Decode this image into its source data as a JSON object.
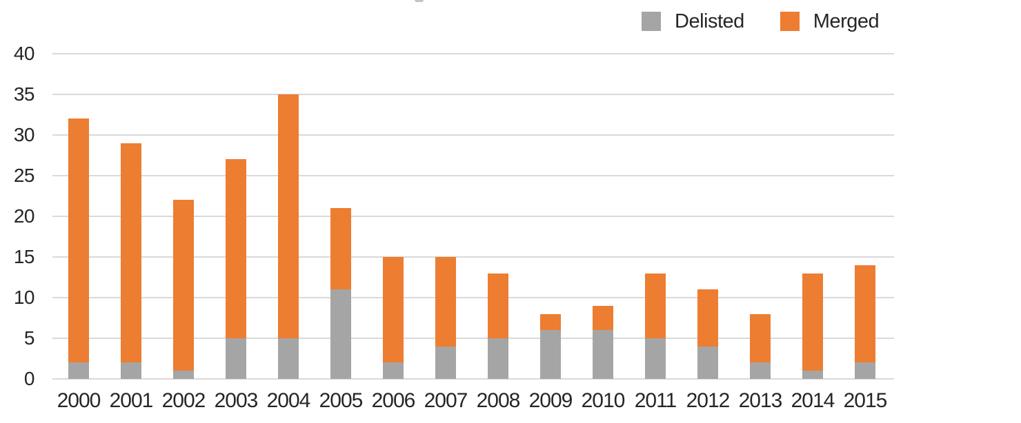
{
  "legend": {
    "items": [
      {
        "label": "Delisted",
        "color": "#A5A5A5"
      },
      {
        "label": "Merged",
        "color": "#ED7D31"
      }
    ]
  },
  "chart_data": {
    "type": "bar",
    "stacked": true,
    "orientation": "vertical",
    "categories": [
      "2000",
      "2001",
      "2002",
      "2003",
      "2004",
      "2005",
      "2006",
      "2007",
      "2008",
      "2009",
      "2010",
      "2011",
      "2012",
      "2013",
      "2014",
      "2015"
    ],
    "series": [
      {
        "name": "Delisted",
        "color": "#A5A5A5",
        "values": [
          2,
          2,
          1,
          5,
          5,
          11,
          2,
          4,
          5,
          6,
          6,
          5,
          4,
          2,
          1,
          2
        ]
      },
      {
        "name": "Merged",
        "color": "#ED7D31",
        "values": [
          30,
          27,
          21,
          22,
          30,
          10,
          13,
          11,
          8,
          2,
          3,
          8,
          7,
          6,
          12,
          12
        ]
      }
    ],
    "stack_totals": [
      32,
      29,
      22,
      27,
      35,
      21,
      15,
      15,
      13,
      8,
      9,
      13,
      11,
      8,
      13,
      14
    ],
    "title": "",
    "xlabel": "",
    "ylabel": "",
    "ylim": [
      0,
      40
    ],
    "yticks": [
      0,
      5,
      10,
      15,
      20,
      25,
      30,
      35,
      40
    ],
    "grid": "horizontal-only",
    "gridline_color": "#D9D9D9",
    "text_color": "#262626",
    "background_color": "#FFFFFF",
    "legend_position": "top-right"
  }
}
